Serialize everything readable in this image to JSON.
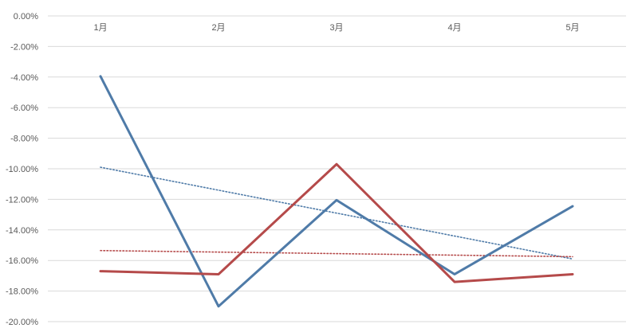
{
  "chart_data": {
    "type": "line",
    "title": "",
    "xlabel": "",
    "ylabel": "",
    "categories": [
      "1月",
      "2月",
      "3月",
      "4月",
      "5月"
    ],
    "ylim": [
      -20,
      0
    ],
    "y_ticks": [
      0,
      -2,
      -4,
      -6,
      -8,
      -10,
      -12,
      -14,
      -16,
      -18,
      -20
    ],
    "y_tick_labels": [
      "0.00%",
      "-2.00%",
      "-4.00%",
      "-6.00%",
      "-8.00%",
      "-10.00%",
      "-12.00%",
      "-14.00%",
      "-16.00%",
      "-18.00%",
      "-20.00%"
    ],
    "grid": true,
    "x_axis_position": "top",
    "series": [
      {
        "color": "#4f7ba8",
        "values": [
          -3.95,
          -19.0,
          -12.05,
          -16.9,
          -12.45
        ]
      },
      {
        "color": "#b54a4a",
        "values": [
          -16.7,
          -16.9,
          -9.7,
          -17.4,
          -16.9
        ]
      }
    ],
    "trendlines": [
      {
        "color": "#4f7ba8",
        "style": "dotted",
        "values": [
          -9.9,
          -11.4,
          -12.9,
          -14.4,
          -15.9
        ]
      },
      {
        "color": "#b54a4a",
        "style": "dotted",
        "values": [
          -15.35,
          -15.45,
          -15.55,
          -15.65,
          -15.75
        ]
      }
    ]
  }
}
